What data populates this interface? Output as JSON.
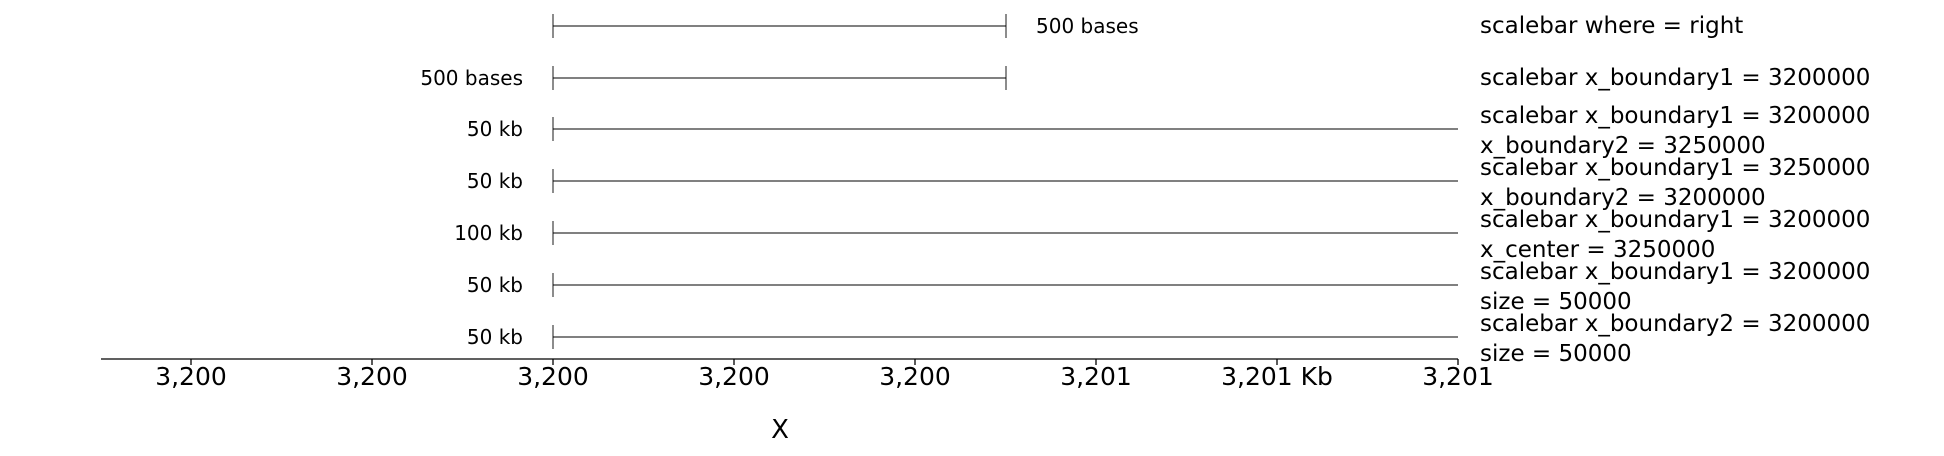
{
  "chart_data": {
    "type": "scalebar",
    "xlabel": "X",
    "x_tick_labels": [
      "3,200",
      "3,200",
      "3,200",
      "3,200",
      "3,200",
      "3,201",
      "3,201 Kb",
      "3,201"
    ],
    "rows": [
      {
        "scalebar_label": "500 bases",
        "label_side": "right",
        "track_text": [
          "scalebar where = right"
        ]
      },
      {
        "scalebar_label": "500 bases",
        "label_side": "left",
        "track_text": [
          "scalebar x_boundary1 = 3200000"
        ]
      },
      {
        "scalebar_label": "50 kb",
        "label_side": "left",
        "track_text": [
          "scalebar x_boundary1 = 3200000",
          "x_boundary2 = 3250000"
        ]
      },
      {
        "scalebar_label": "50 kb",
        "label_side": "left",
        "track_text": [
          "scalebar x_boundary1 = 3250000",
          "x_boundary2 = 3200000"
        ]
      },
      {
        "scalebar_label": "100 kb",
        "label_side": "left",
        "track_text": [
          "scalebar x_boundary1 = 3200000",
          "x_center = 3250000"
        ]
      },
      {
        "scalebar_label": "50 kb",
        "label_side": "left",
        "track_text": [
          "scalebar x_boundary1 = 3200000",
          "size = 50000"
        ]
      },
      {
        "scalebar_label": "50 kb",
        "label_side": "left",
        "track_text": [
          "scalebar x_boundary2 = 3200000",
          "size = 50000"
        ]
      }
    ]
  }
}
